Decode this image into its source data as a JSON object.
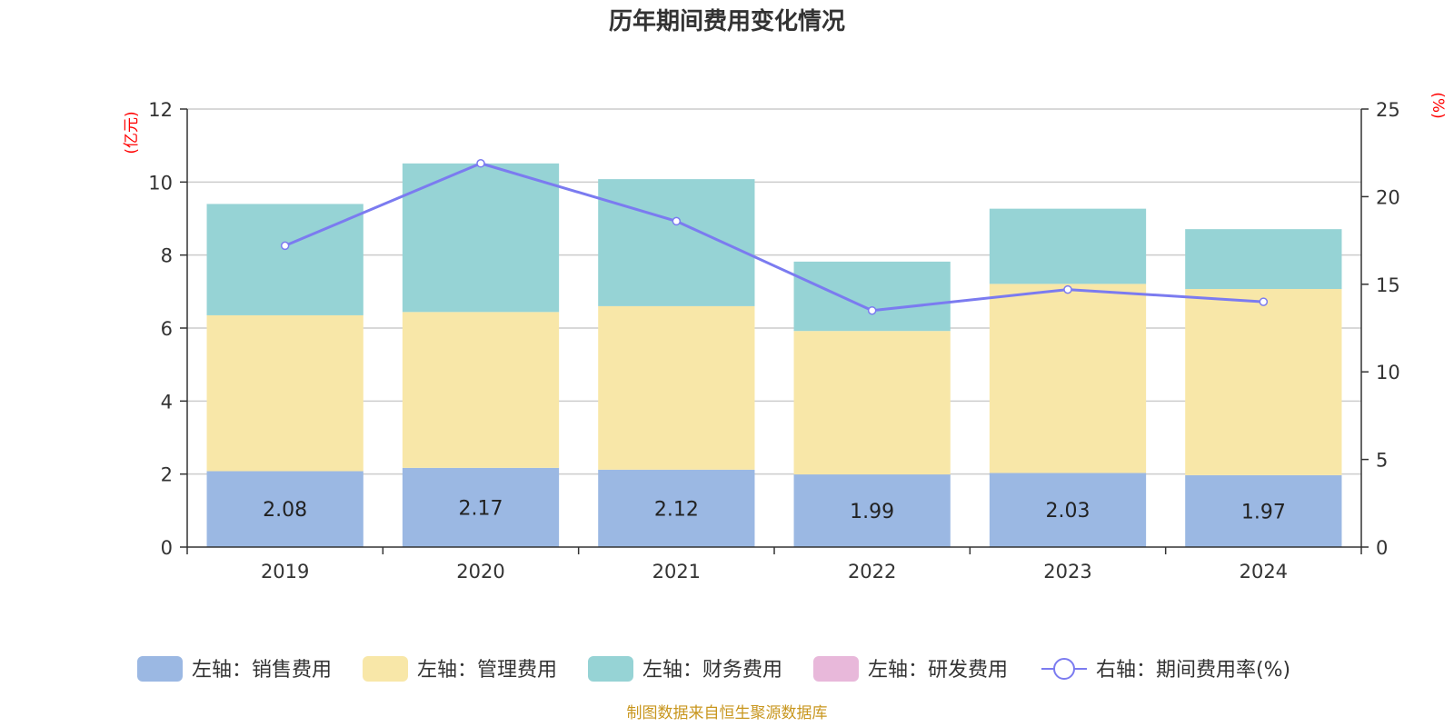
{
  "chart_data": {
    "type": "bar",
    "title": "历年期间费用变化情况",
    "categories": [
      "2019",
      "2020",
      "2021",
      "2022",
      "2023",
      "2024"
    ],
    "left_axis": {
      "unit": "(亿元)",
      "ylim": [
        0,
        12
      ],
      "ticks": [
        "0",
        "2",
        "4",
        "6",
        "8",
        "10",
        "12"
      ]
    },
    "right_axis": {
      "unit": "(%)",
      "ylim": [
        0,
        25
      ],
      "ticks": [
        "0",
        "5",
        "10",
        "15",
        "20",
        "25"
      ]
    },
    "series": [
      {
        "name": "左轴：销售费用",
        "type": "bar",
        "axis": "left",
        "color": "#9bb8e3",
        "values": [
          2.08,
          2.17,
          2.12,
          1.99,
          2.03,
          1.97
        ],
        "labels": [
          "2.08",
          "2.17",
          "2.12",
          "1.99",
          "2.03",
          "1.97"
        ]
      },
      {
        "name": "左轴：管理费用",
        "type": "bar",
        "axis": "left",
        "color": "#f8e7a8",
        "values": [
          4.27,
          4.27,
          4.48,
          3.93,
          5.18,
          5.1
        ]
      },
      {
        "name": "左轴：财务费用",
        "type": "bar",
        "axis": "left",
        "color": "#96d3d5",
        "values": [
          3.05,
          4.07,
          3.48,
          1.9,
          2.06,
          1.64
        ]
      },
      {
        "name": "左轴：研发费用",
        "type": "bar",
        "axis": "left",
        "color": "#e8b8da",
        "values": [
          0,
          0,
          0,
          0,
          0,
          0
        ]
      },
      {
        "name": "右轴：期间费用率(%)",
        "type": "line",
        "axis": "right",
        "color": "#7b7bf0",
        "values": [
          17.2,
          21.9,
          18.6,
          13.5,
          14.7,
          14.0
        ]
      }
    ],
    "grid": true,
    "legend_position": "bottom"
  },
  "source_note": "制图数据来自恒生聚源数据库"
}
